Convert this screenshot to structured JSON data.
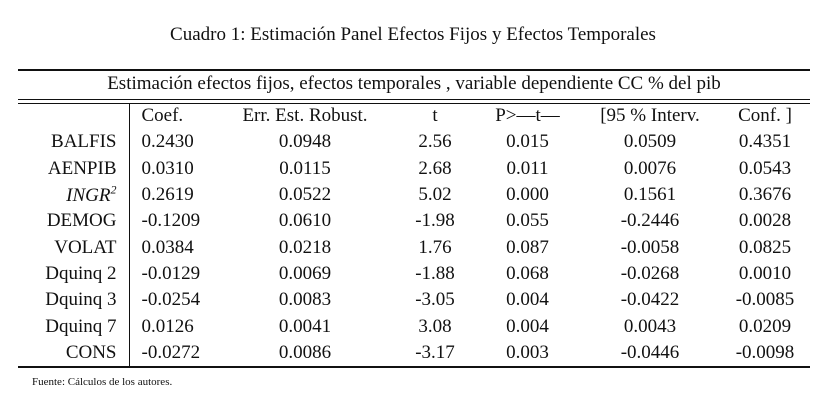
{
  "caption": "Cuadro 1: Estimación Panel Efectos Fijos y Efectos Temporales",
  "subtitle": "Estimación efectos fijos, efectos temporales , variable dependiente CC % del pib",
  "headers": [
    "",
    "Coef.",
    "Err. Est. Robust.",
    "t",
    "P>—t—",
    "[95 % Interv.",
    "Conf. ]"
  ],
  "rows": [
    {
      "label": "BALFIS",
      "values": [
        "0.2430",
        "0.0948",
        "2.56",
        "0.015",
        "0.0509",
        "0.4351"
      ]
    },
    {
      "label": "AENPIB",
      "values": [
        "0.0310",
        "0.0115",
        "2.68",
        "0.011",
        "0.0076",
        "0.0543"
      ]
    },
    {
      "label": "INGR",
      "sup": "2",
      "values": [
        "0.2619",
        "0.0522",
        "5.02",
        "0.000",
        "0.1561",
        "0.3676"
      ]
    },
    {
      "label": "DEMOG",
      "values": [
        "-0.1209",
        "0.0610",
        "-1.98",
        "0.055",
        "-0.2446",
        "0.0028"
      ]
    },
    {
      "label": "VOLAT",
      "values": [
        "0.0384",
        "0.0218",
        "1.76",
        "0.087",
        "-0.0058",
        "0.0825"
      ]
    },
    {
      "label": "Dquinq 2",
      "values": [
        "-0.0129",
        "0.0069",
        "-1.88",
        "0.068",
        "-0.0268",
        "0.0010"
      ]
    },
    {
      "label": "Dquinq 3",
      "values": [
        "-0.0254",
        "0.0083",
        "-3.05",
        "0.004",
        "-0.0422",
        "-0.0085"
      ]
    },
    {
      "label": "Dquinq 7",
      "values": [
        "0.0126",
        "0.0041",
        "3.08",
        "0.004",
        "0.0043",
        "0.0209"
      ]
    },
    {
      "label": "CONS",
      "values": [
        "-0.0272",
        "0.0086",
        "-3.17",
        "0.003",
        "-0.0446",
        "-0.0098"
      ]
    }
  ],
  "footnote": "Fuente: Cálculos de los autores."
}
